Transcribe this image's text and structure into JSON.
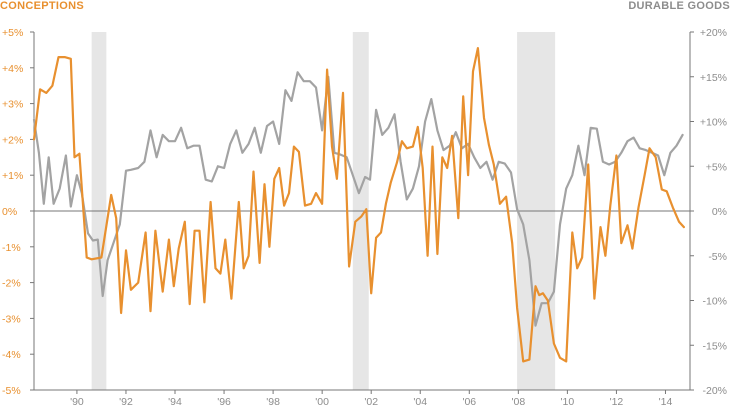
{
  "labels": {
    "left_axis_title": "CONCEPTIONS",
    "right_axis_title": "DURABLE GOODS"
  },
  "colors": {
    "conceptions": "#e8902f",
    "durable_goods": "#a3a3a3",
    "recession": "#e6e6e6",
    "axis": "#777777",
    "left_text": "#e8902f",
    "right_text": "#8c8c8c",
    "x_text": "#8c8c8c"
  },
  "chart_data": {
    "type": "line",
    "x_axis": {
      "range": [
        1988.25,
        2015.0
      ],
      "ticks": [
        1990,
        1992,
        1994,
        1996,
        1998,
        2000,
        2002,
        2004,
        2006,
        2008,
        2010,
        2012,
        2014
      ],
      "tick_labels": [
        "'90",
        "'92",
        "'94",
        "'96",
        "'98",
        "'00",
        "'02",
        "'04",
        "'06",
        "'08",
        "'10",
        "'12",
        "'14"
      ]
    },
    "y_left": {
      "title": "CONCEPTIONS",
      "range": [
        -5,
        5
      ],
      "ticks": [
        5,
        4,
        3,
        2,
        1,
        0,
        -1,
        -2,
        -3,
        -4,
        -5
      ],
      "tick_labels": [
        "+5%",
        "+4%",
        "+3%",
        "+2%",
        "+1%",
        "0%",
        "-1%",
        "-2%",
        "-3%",
        "-4%",
        "-5%"
      ]
    },
    "y_right": {
      "title": "DURABLE GOODS",
      "range": [
        -20,
        20
      ],
      "ticks": [
        20,
        15,
        10,
        5,
        0,
        -5,
        -10,
        -15,
        -20
      ],
      "tick_labels": [
        "+20%",
        "+15%",
        "+10%",
        "+5%",
        "0%",
        "-5%",
        "-10%",
        "-15%",
        "-20%"
      ]
    },
    "recession_bands": [
      [
        1990.6,
        1991.2
      ],
      [
        2001.25,
        2001.9
      ],
      [
        2007.95,
        2009.5
      ]
    ],
    "zero_line": true,
    "grid": false,
    "series": [
      {
        "axis": "left",
        "color": "#e8902f",
        "points": [
          [
            1988.25,
            2.0
          ],
          [
            1988.5,
            3.4
          ],
          [
            1988.75,
            3.3
          ],
          [
            1989.0,
            3.5
          ],
          [
            1989.25,
            4.3
          ],
          [
            1989.5,
            4.3
          ],
          [
            1989.75,
            4.25
          ],
          [
            1989.9,
            1.5
          ],
          [
            1990.1,
            1.6
          ],
          [
            1990.4,
            -1.3
          ],
          [
            1990.6,
            -1.35
          ],
          [
            1991.0,
            -1.3
          ],
          [
            1991.4,
            0.45
          ],
          [
            1991.6,
            -0.2
          ],
          [
            1991.8,
            -2.85
          ],
          [
            1992.0,
            -1.1
          ],
          [
            1992.2,
            -2.2
          ],
          [
            1992.5,
            -2.0
          ],
          [
            1992.8,
            -0.6
          ],
          [
            1993.0,
            -2.8
          ],
          [
            1993.2,
            -0.55
          ],
          [
            1993.5,
            -2.25
          ],
          [
            1993.75,
            -0.8
          ],
          [
            1993.95,
            -2.1
          ],
          [
            1994.15,
            -1.05
          ],
          [
            1994.4,
            -0.3
          ],
          [
            1994.6,
            -2.6
          ],
          [
            1994.8,
            -0.55
          ],
          [
            1995.0,
            -0.55
          ],
          [
            1995.2,
            -2.55
          ],
          [
            1995.45,
            0.25
          ],
          [
            1995.65,
            -1.6
          ],
          [
            1995.85,
            -1.75
          ],
          [
            1996.05,
            -0.8
          ],
          [
            1996.3,
            -2.45
          ],
          [
            1996.6,
            0.25
          ],
          [
            1996.8,
            -1.6
          ],
          [
            1997.0,
            -1.25
          ],
          [
            1997.2,
            1.1
          ],
          [
            1997.45,
            -1.45
          ],
          [
            1997.65,
            0.75
          ],
          [
            1997.85,
            -1.0
          ],
          [
            1998.05,
            0.9
          ],
          [
            1998.25,
            1.2
          ],
          [
            1998.45,
            0.15
          ],
          [
            1998.65,
            0.5
          ],
          [
            1998.85,
            1.8
          ],
          [
            1999.05,
            1.65
          ],
          [
            1999.3,
            0.15
          ],
          [
            1999.55,
            0.2
          ],
          [
            1999.75,
            0.5
          ],
          [
            2000.0,
            0.2
          ],
          [
            2000.2,
            3.95
          ],
          [
            2000.4,
            1.8
          ],
          [
            2000.6,
            0.9
          ],
          [
            2000.85,
            3.3
          ],
          [
            2001.1,
            -1.55
          ],
          [
            2001.35,
            -0.3
          ],
          [
            2001.6,
            -0.15
          ],
          [
            2001.8,
            0.05
          ],
          [
            2002.0,
            -2.3
          ],
          [
            2002.2,
            -0.75
          ],
          [
            2002.4,
            -0.6
          ],
          [
            2002.6,
            0.2
          ],
          [
            2002.8,
            0.8
          ],
          [
            2003.05,
            1.35
          ],
          [
            2003.25,
            1.95
          ],
          [
            2003.45,
            1.75
          ],
          [
            2003.7,
            1.8
          ],
          [
            2003.9,
            2.35
          ],
          [
            2004.1,
            1.2
          ],
          [
            2004.3,
            -1.25
          ],
          [
            2004.5,
            1.8
          ],
          [
            2004.7,
            -1.2
          ],
          [
            2004.9,
            1.5
          ],
          [
            2005.1,
            1.2
          ],
          [
            2005.3,
            2.1
          ],
          [
            2005.55,
            -0.2
          ],
          [
            2005.75,
            3.2
          ],
          [
            2005.95,
            1.0
          ],
          [
            2006.15,
            3.9
          ],
          [
            2006.35,
            4.55
          ],
          [
            2006.6,
            2.6
          ],
          [
            2006.8,
            1.85
          ],
          [
            2007.0,
            1.3
          ],
          [
            2007.25,
            0.2
          ],
          [
            2007.5,
            0.4
          ],
          [
            2007.75,
            -0.9
          ],
          [
            2007.95,
            -2.7
          ],
          [
            2008.2,
            -4.2
          ],
          [
            2008.45,
            -4.15
          ],
          [
            2008.7,
            -2.1
          ],
          [
            2008.85,
            -2.35
          ],
          [
            2009.0,
            -2.3
          ],
          [
            2009.2,
            -2.5
          ],
          [
            2009.45,
            -3.7
          ],
          [
            2009.7,
            -4.1
          ],
          [
            2009.95,
            -4.2
          ],
          [
            2010.2,
            -0.6
          ],
          [
            2010.4,
            -1.6
          ],
          [
            2010.6,
            -1.3
          ],
          [
            2010.85,
            1.3
          ],
          [
            2011.1,
            -2.45
          ],
          [
            2011.35,
            -0.45
          ],
          [
            2011.55,
            -1.25
          ],
          [
            2011.75,
            0.15
          ],
          [
            2012.0,
            1.55
          ],
          [
            2012.2,
            -0.9
          ],
          [
            2012.45,
            -0.4
          ],
          [
            2012.65,
            -1.05
          ],
          [
            2012.9,
            0.1
          ],
          [
            2013.15,
            1.0
          ],
          [
            2013.35,
            1.75
          ],
          [
            2013.6,
            1.5
          ],
          [
            2013.85,
            0.6
          ],
          [
            2014.05,
            0.55
          ],
          [
            2014.3,
            0.1
          ],
          [
            2014.55,
            -0.3
          ],
          [
            2014.75,
            -0.45
          ]
        ]
      },
      {
        "axis": "right",
        "color": "#a3a3a3",
        "points": [
          [
            1988.25,
            10.2
          ],
          [
            1988.45,
            6.5
          ],
          [
            1988.65,
            0.8
          ],
          [
            1988.85,
            6.0
          ],
          [
            1989.05,
            0.8
          ],
          [
            1989.3,
            2.5
          ],
          [
            1989.55,
            6.2
          ],
          [
            1989.75,
            0.5
          ],
          [
            1990.0,
            4.0
          ],
          [
            1990.2,
            2.0
          ],
          [
            1990.45,
            -2.5
          ],
          [
            1990.65,
            -3.3
          ],
          [
            1990.85,
            -3.2
          ],
          [
            1991.05,
            -9.5
          ],
          [
            1991.25,
            -5.5
          ],
          [
            1991.5,
            -3.5
          ],
          [
            1991.75,
            -1.5
          ],
          [
            1992.0,
            4.5
          ],
          [
            1992.2,
            4.6
          ],
          [
            1992.5,
            4.8
          ],
          [
            1992.75,
            5.5
          ],
          [
            1993.0,
            9.0
          ],
          [
            1993.25,
            6.0
          ],
          [
            1993.5,
            8.5
          ],
          [
            1993.75,
            7.8
          ],
          [
            1994.0,
            7.8
          ],
          [
            1994.25,
            9.3
          ],
          [
            1994.5,
            7.0
          ],
          [
            1994.75,
            7.3
          ],
          [
            1995.0,
            7.3
          ],
          [
            1995.25,
            3.5
          ],
          [
            1995.5,
            3.3
          ],
          [
            1995.75,
            5.0
          ],
          [
            1996.0,
            4.8
          ],
          [
            1996.25,
            7.5
          ],
          [
            1996.5,
            9.0
          ],
          [
            1996.75,
            6.5
          ],
          [
            1997.0,
            7.5
          ],
          [
            1997.25,
            9.3
          ],
          [
            1997.5,
            6.5
          ],
          [
            1997.75,
            9.5
          ],
          [
            1998.0,
            10.0
          ],
          [
            1998.25,
            7.5
          ],
          [
            1998.5,
            13.5
          ],
          [
            1998.75,
            12.3
          ],
          [
            1999.0,
            15.5
          ],
          [
            1999.25,
            14.5
          ],
          [
            1999.5,
            14.5
          ],
          [
            1999.75,
            13.8
          ],
          [
            2000.0,
            9.0
          ],
          [
            2000.25,
            15.0
          ],
          [
            2000.5,
            6.5
          ],
          [
            2000.75,
            6.3
          ],
          [
            2001.0,
            6.0
          ],
          [
            2001.25,
            4.0
          ],
          [
            2001.5,
            2.0
          ],
          [
            2001.75,
            3.8
          ],
          [
            2001.95,
            3.5
          ],
          [
            2002.2,
            11.3
          ],
          [
            2002.45,
            8.5
          ],
          [
            2002.7,
            9.3
          ],
          [
            2002.95,
            10.8
          ],
          [
            2003.2,
            5.5
          ],
          [
            2003.45,
            1.3
          ],
          [
            2003.7,
            2.5
          ],
          [
            2003.95,
            5.0
          ],
          [
            2004.2,
            10.0
          ],
          [
            2004.45,
            12.5
          ],
          [
            2004.7,
            9.0
          ],
          [
            2004.95,
            6.8
          ],
          [
            2005.2,
            7.3
          ],
          [
            2005.45,
            8.8
          ],
          [
            2005.7,
            7.0
          ],
          [
            2005.95,
            7.5
          ],
          [
            2006.2,
            6.0
          ],
          [
            2006.45,
            4.8
          ],
          [
            2006.7,
            5.5
          ],
          [
            2006.95,
            3.5
          ],
          [
            2007.2,
            5.5
          ],
          [
            2007.45,
            5.3
          ],
          [
            2007.7,
            4.3
          ],
          [
            2007.95,
            0.2
          ],
          [
            2008.2,
            -1.5
          ],
          [
            2008.45,
            -5.5
          ],
          [
            2008.7,
            -12.8
          ],
          [
            2008.95,
            -10.3
          ],
          [
            2009.2,
            -10.3
          ],
          [
            2009.45,
            -9.0
          ],
          [
            2009.7,
            -1.5
          ],
          [
            2009.95,
            2.5
          ],
          [
            2010.2,
            4.0
          ],
          [
            2010.45,
            7.3
          ],
          [
            2010.7,
            4.0
          ],
          [
            2010.95,
            9.3
          ],
          [
            2011.2,
            9.2
          ],
          [
            2011.45,
            5.5
          ],
          [
            2011.7,
            5.2
          ],
          [
            2011.95,
            5.5
          ],
          [
            2012.2,
            6.5
          ],
          [
            2012.45,
            7.8
          ],
          [
            2012.7,
            8.2
          ],
          [
            2012.95,
            7.0
          ],
          [
            2013.2,
            6.8
          ],
          [
            2013.45,
            6.5
          ],
          [
            2013.7,
            6.2
          ],
          [
            2013.95,
            4.0
          ],
          [
            2014.2,
            6.5
          ],
          [
            2014.45,
            7.3
          ],
          [
            2014.7,
            8.5
          ]
        ]
      }
    ]
  }
}
